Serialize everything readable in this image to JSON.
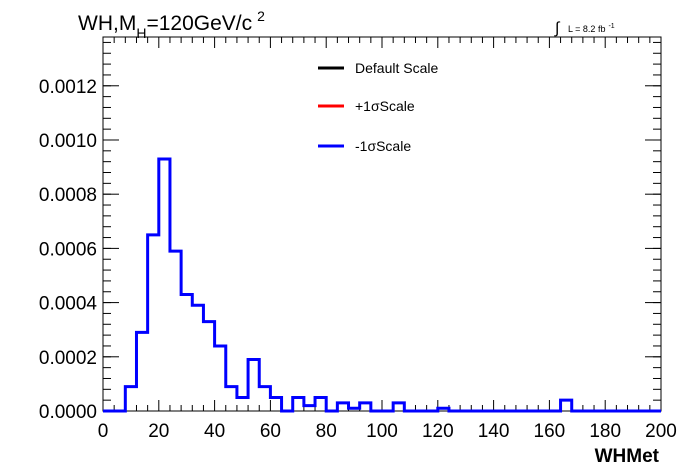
{
  "title": {
    "main": "WH,M",
    "sub": "H",
    "rest": "=120GeV/c",
    "sup": "2"
  },
  "lumi": {
    "integral": "∫",
    "text": "L = 8.2 fb",
    "sup": "-1"
  },
  "chart_data": {
    "type": "histogram",
    "xlabel": "WHMet",
    "ylabel": "",
    "xlim": [
      0,
      200
    ],
    "ylim": [
      0,
      0.00138
    ],
    "x_ticks": [
      0,
      20,
      40,
      60,
      80,
      100,
      120,
      140,
      160,
      180,
      200
    ],
    "y_ticks": [
      "0.0000",
      "0.0002",
      "0.0004",
      "0.0006",
      "0.0008",
      "0.0010",
      "0.0012"
    ],
    "y_tick_values": [
      0,
      0.0002,
      0.0004,
      0.0006,
      0.0008,
      0.001,
      0.0012
    ],
    "bin_width": 4,
    "bin_starts": [
      0,
      4,
      8,
      12,
      16,
      20,
      24,
      28,
      32,
      36,
      40,
      44,
      48,
      52,
      56,
      60,
      64,
      68,
      72,
      76,
      80,
      84,
      88,
      92,
      96,
      100,
      104,
      108,
      112,
      116,
      120,
      124,
      128,
      132,
      136,
      140,
      144,
      148,
      152,
      156,
      160,
      164,
      168,
      172,
      176,
      180,
      184,
      188,
      192,
      196
    ],
    "legend": [
      {
        "name": "Default Scale",
        "color": "#000000"
      },
      {
        "name": "+1σScale",
        "color": "#ff0000"
      },
      {
        "name": "-1σScale",
        "color": "#0000ff"
      }
    ],
    "series": [
      {
        "name": "-1σScale",
        "color": "#0000ff",
        "values": [
          0,
          0,
          9e-05,
          0.00029,
          0.00065,
          0.00093,
          0.00059,
          0.00043,
          0.00039,
          0.00033,
          0.00024,
          9e-05,
          5e-05,
          0.00019,
          9e-05,
          5e-05,
          0,
          5e-05,
          2e-05,
          5e-05,
          0,
          3e-05,
          1e-05,
          3e-05,
          0,
          0,
          3e-05,
          0,
          0,
          0,
          1e-05,
          0,
          0,
          0,
          0,
          0,
          0,
          0,
          0,
          0,
          0,
          4e-05,
          0,
          0,
          0,
          0,
          0,
          0,
          0,
          0
        ]
      }
    ]
  }
}
